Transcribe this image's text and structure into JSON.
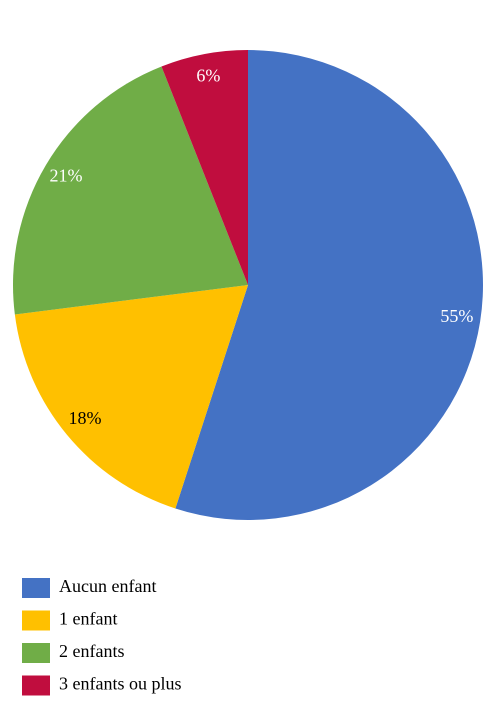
{
  "chart_data": {
    "type": "pie",
    "categories": [
      "Aucun enfant",
      "1 enfant",
      "2 enfants",
      "3 enfants ou plus"
    ],
    "values": [
      55,
      18,
      21,
      6
    ],
    "value_labels": [
      "55%",
      "18%",
      "21%",
      "6%"
    ],
    "colors": [
      "#4472c4",
      "#ffc000",
      "#70ad47",
      "#c00d3e"
    ],
    "label_colors": [
      "#ffffff",
      "#000000",
      "#ffffff",
      "#ffffff"
    ],
    "legend": "bottom-left"
  }
}
